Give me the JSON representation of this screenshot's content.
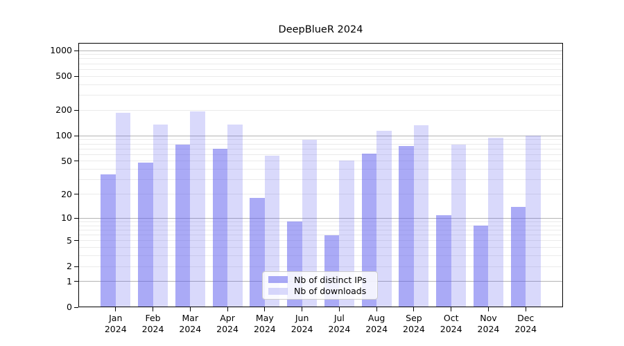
{
  "figure": {
    "background": "#ffffff"
  },
  "chart_data": {
    "type": "bar",
    "title": "DeepBlueR 2024",
    "categories": [
      "Jan",
      "Feb",
      "Mar",
      "Apr",
      "May",
      "Jun",
      "Jul",
      "Aug",
      "Sep",
      "Oct",
      "Nov",
      "Dec"
    ],
    "category_year": "2024",
    "series": [
      {
        "name": "Nb of distinct IPs",
        "color": "rgba(92,92,237,0.52)",
        "values": [
          35,
          48,
          78,
          70,
          18,
          9,
          6,
          61,
          75,
          11,
          8,
          14
        ]
      },
      {
        "name": "Nb of downloads",
        "color": "rgba(92,92,237,0.23)",
        "values": [
          186,
          136,
          192,
          136,
          58,
          90,
          51,
          115,
          134,
          78,
          94,
          101
        ]
      }
    ],
    "y_axis": {
      "scale": "log1p",
      "tick_values": [
        0,
        1,
        2,
        5,
        10,
        20,
        50,
        100,
        200,
        500,
        1000
      ],
      "range": [
        0,
        1000
      ]
    },
    "x_axis": {
      "tick_count": 12
    },
    "grid": {
      "major_values": [
        1,
        10,
        100,
        1000
      ],
      "minor_values": [
        2,
        3,
        4,
        5,
        6,
        7,
        8,
        9,
        20,
        30,
        40,
        50,
        60,
        70,
        80,
        90,
        200,
        300,
        400,
        500,
        600,
        700,
        800,
        900
      ],
      "major_color": "#b3b3b3",
      "minor_color": "#eaeaea"
    },
    "legend": {
      "position": "lower-center"
    }
  }
}
